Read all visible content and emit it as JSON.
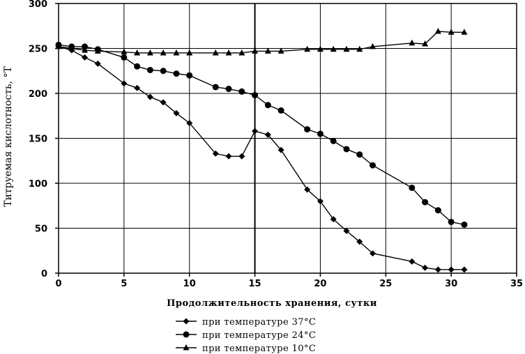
{
  "chart_data": {
    "type": "line",
    "title": "",
    "xlabel": "Продолжительность хранения,  сутки",
    "ylabel": "Титруемая кислотность, °Т",
    "xlim": [
      0,
      35
    ],
    "ylim": [
      0,
      300
    ],
    "x_ticks": [
      "0",
      "5",
      "10",
      "15",
      "20",
      "25",
      "30",
      "35"
    ],
    "y_ticks": [
      "0",
      "50",
      "100",
      "150",
      "200",
      "250",
      "300"
    ],
    "grid": true,
    "legend_position": "bottom",
    "series": [
      {
        "name": "при температуре 37°С",
        "marker": "diamond",
        "x": [
          0,
          1,
          2,
          3,
          5,
          6,
          7,
          8,
          9,
          10,
          12,
          13,
          14,
          15,
          16,
          17,
          19,
          20,
          21,
          22,
          23,
          24,
          27,
          28,
          29,
          30,
          31
        ],
        "y": [
          252,
          248,
          240,
          233,
          211,
          206,
          196,
          190,
          178,
          167,
          133,
          130,
          130,
          158,
          154,
          137,
          93,
          80,
          60,
          47,
          35,
          22,
          13,
          6,
          4,
          4,
          4
        ]
      },
      {
        "name": "при температуре 24°С",
        "marker": "circle",
        "x": [
          0,
          1,
          2,
          3,
          5,
          6,
          7,
          8,
          9,
          10,
          12,
          13,
          14,
          15,
          16,
          17,
          19,
          20,
          21,
          22,
          23,
          24,
          27,
          28,
          29,
          30,
          31
        ],
        "y": [
          254,
          252,
          252,
          249,
          240,
          230,
          226,
          225,
          222,
          220,
          207,
          205,
          202,
          198,
          187,
          181,
          160,
          155,
          147,
          138,
          132,
          120,
          95,
          79,
          70,
          57,
          54
        ]
      },
      {
        "name": "при температуре 10°С",
        "marker": "triangle",
        "x": [
          0,
          1,
          2,
          3,
          5,
          6,
          7,
          8,
          9,
          10,
          12,
          13,
          14,
          15,
          16,
          17,
          19,
          20,
          21,
          22,
          23,
          24,
          27,
          28,
          29,
          30,
          31
        ],
        "y": [
          252,
          250,
          248,
          247,
          246,
          245,
          245,
          245,
          245,
          245,
          245,
          245,
          245,
          247,
          247,
          247,
          249,
          249,
          249,
          249,
          249,
          252,
          256,
          255,
          269,
          268,
          268
        ]
      }
    ]
  }
}
